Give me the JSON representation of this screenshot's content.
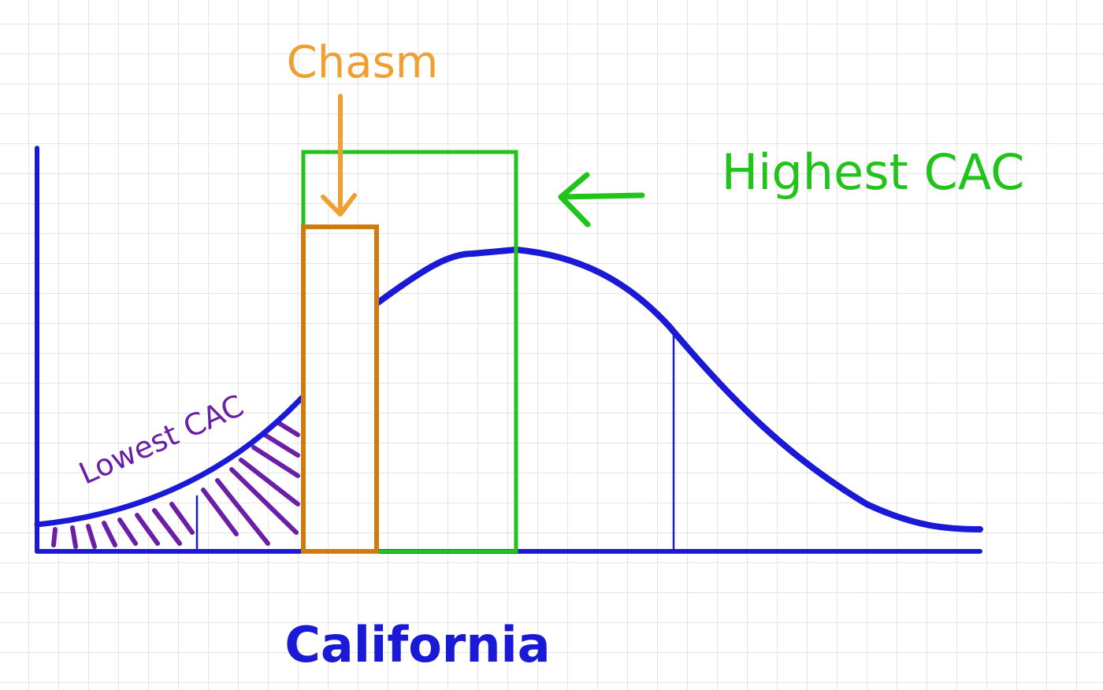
{
  "labels": {
    "chasm": "Chasm",
    "highest_cac": "Highest CAC",
    "lowest_cac": "Lowest CAC",
    "x_label": "California"
  }
}
